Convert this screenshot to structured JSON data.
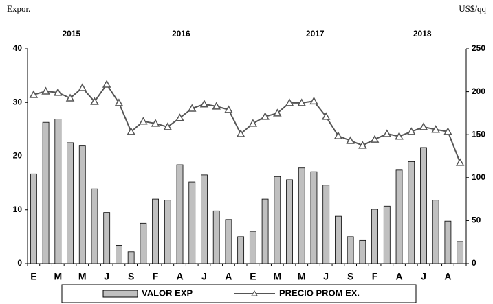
{
  "chart_data": {
    "type": "bar_line",
    "y_label": "Expor.",
    "y2_label": "US$/qq",
    "years": [
      "2015",
      "2016",
      "2017",
      "2018"
    ],
    "categories": [
      "E",
      null,
      "M",
      null,
      "M",
      null,
      "J",
      null,
      "S",
      null,
      "F",
      null,
      "A",
      null,
      "J",
      null,
      "A",
      null,
      "E",
      null,
      "M",
      null,
      "M",
      null,
      "J",
      null,
      "S",
      null,
      "F",
      null,
      "A",
      null,
      "J",
      null,
      "A",
      null
    ],
    "series": [
      {
        "name": "VALOR EXP",
        "type": "bar",
        "color": "#c0c0c0",
        "values": [
          16.7,
          26.3,
          26.9,
          22.5,
          21.9,
          13.9,
          9.5,
          3.4,
          2.2,
          7.5,
          12.0,
          11.8,
          18.4,
          15.2,
          16.5,
          9.8,
          8.2,
          5.0,
          6.0,
          12.0,
          16.2,
          15.6,
          17.8,
          17.1,
          14.6,
          8.8,
          5.0,
          4.3,
          10.1,
          10.7,
          17.4,
          19.0,
          21.6,
          11.8,
          7.9,
          4.1
        ]
      },
      {
        "name": "PRECIO PROM EX.",
        "type": "line",
        "axis": "y2",
        "color": "#555555",
        "values": [
          196.5,
          200.5,
          199,
          192.5,
          204.5,
          188.5,
          208.5,
          187,
          153.5,
          165.5,
          163,
          159,
          169.5,
          180.5,
          185.5,
          183,
          179,
          151,
          163,
          171,
          175,
          187,
          187,
          189,
          171,
          148.5,
          143,
          137.5,
          144.5,
          151,
          148,
          153.5,
          159,
          156,
          153.5,
          117.5
        ]
      }
    ],
    "ylim": [
      0,
      40
    ],
    "yticks": [
      0,
      10,
      20,
      30,
      40
    ],
    "y2lim": [
      0,
      250
    ],
    "y2ticks": [
      0,
      50,
      100,
      150,
      200,
      250
    ]
  }
}
